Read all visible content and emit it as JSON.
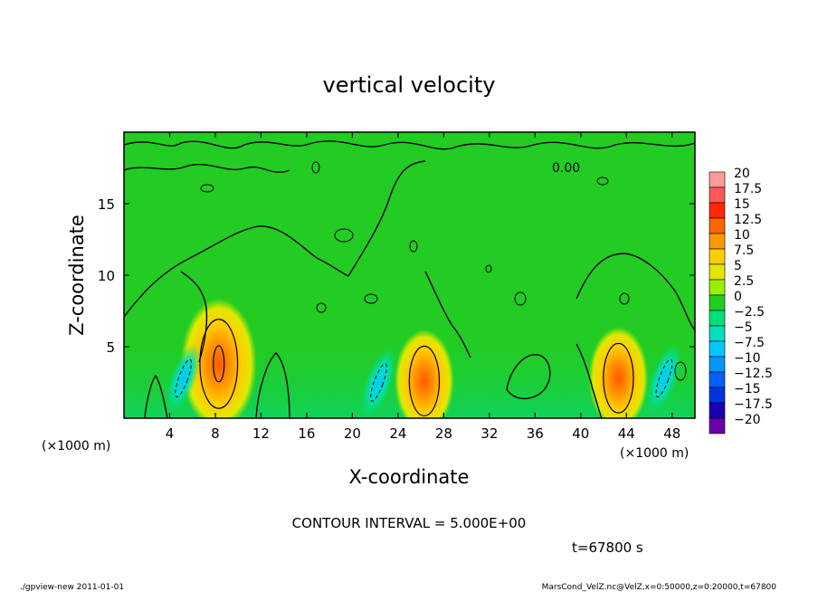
{
  "chart_data": {
    "type": "heatmap",
    "title": "vertical velocity",
    "xlabel": "X-coordinate",
    "ylabel": "Z-coordinate",
    "x_unit_label": "(×1000 m)",
    "y_unit_label": "(×1000 m)",
    "xlim": [
      0,
      50
    ],
    "ylim": [
      0,
      20
    ],
    "x_ticks": [
      4,
      8,
      12,
      16,
      20,
      24,
      28,
      32,
      36,
      40,
      44,
      48
    ],
    "y_ticks": [
      5,
      10,
      15
    ],
    "contour_interval_text": "CONTOUR INTERVAL = 5.000E+00",
    "time_text": "t=67800 s",
    "contour_label_text": "0.00",
    "colorbar": {
      "levels": [
        20,
        17.5,
        15,
        12.5,
        10,
        7.5,
        5,
        2.5,
        0,
        -2.5,
        -5,
        -7.5,
        -10,
        -12.5,
        -15,
        -17.5,
        -20
      ],
      "colors": [
        "#ff9a9a",
        "#ff5858",
        "#ff2a00",
        "#ff6600",
        "#ff9900",
        "#ffcc00",
        "#e5e500",
        "#99ee00",
        "#22cc22",
        "#00e07a",
        "#00e0c0",
        "#00c8ff",
        "#0096ff",
        "#0060ff",
        "#0033e0",
        "#1a00b0",
        "#6a00a8"
      ]
    },
    "features": [
      {
        "kind": "updraft",
        "x": 8.3,
        "z": 3.8,
        "peak": 12
      },
      {
        "kind": "updraft",
        "x": 26.3,
        "z": 2.6,
        "peak": 9
      },
      {
        "kind": "updraft",
        "x": 43.3,
        "z": 2.8,
        "peak": 9
      },
      {
        "kind": "downdraft",
        "x": 5.2,
        "z": 2.8,
        "peak": -6
      },
      {
        "kind": "downdraft",
        "x": 22.3,
        "z": 2.5,
        "peak": -7
      },
      {
        "kind": "downdraft",
        "x": 47.3,
        "z": 2.8,
        "peak": -7
      }
    ]
  },
  "footer": {
    "left": "./gpview-new   2011-01-01",
    "right": "MarsCond_VelZ.nc@VelZ,x=0:50000,z=0:20000,t=67800"
  }
}
